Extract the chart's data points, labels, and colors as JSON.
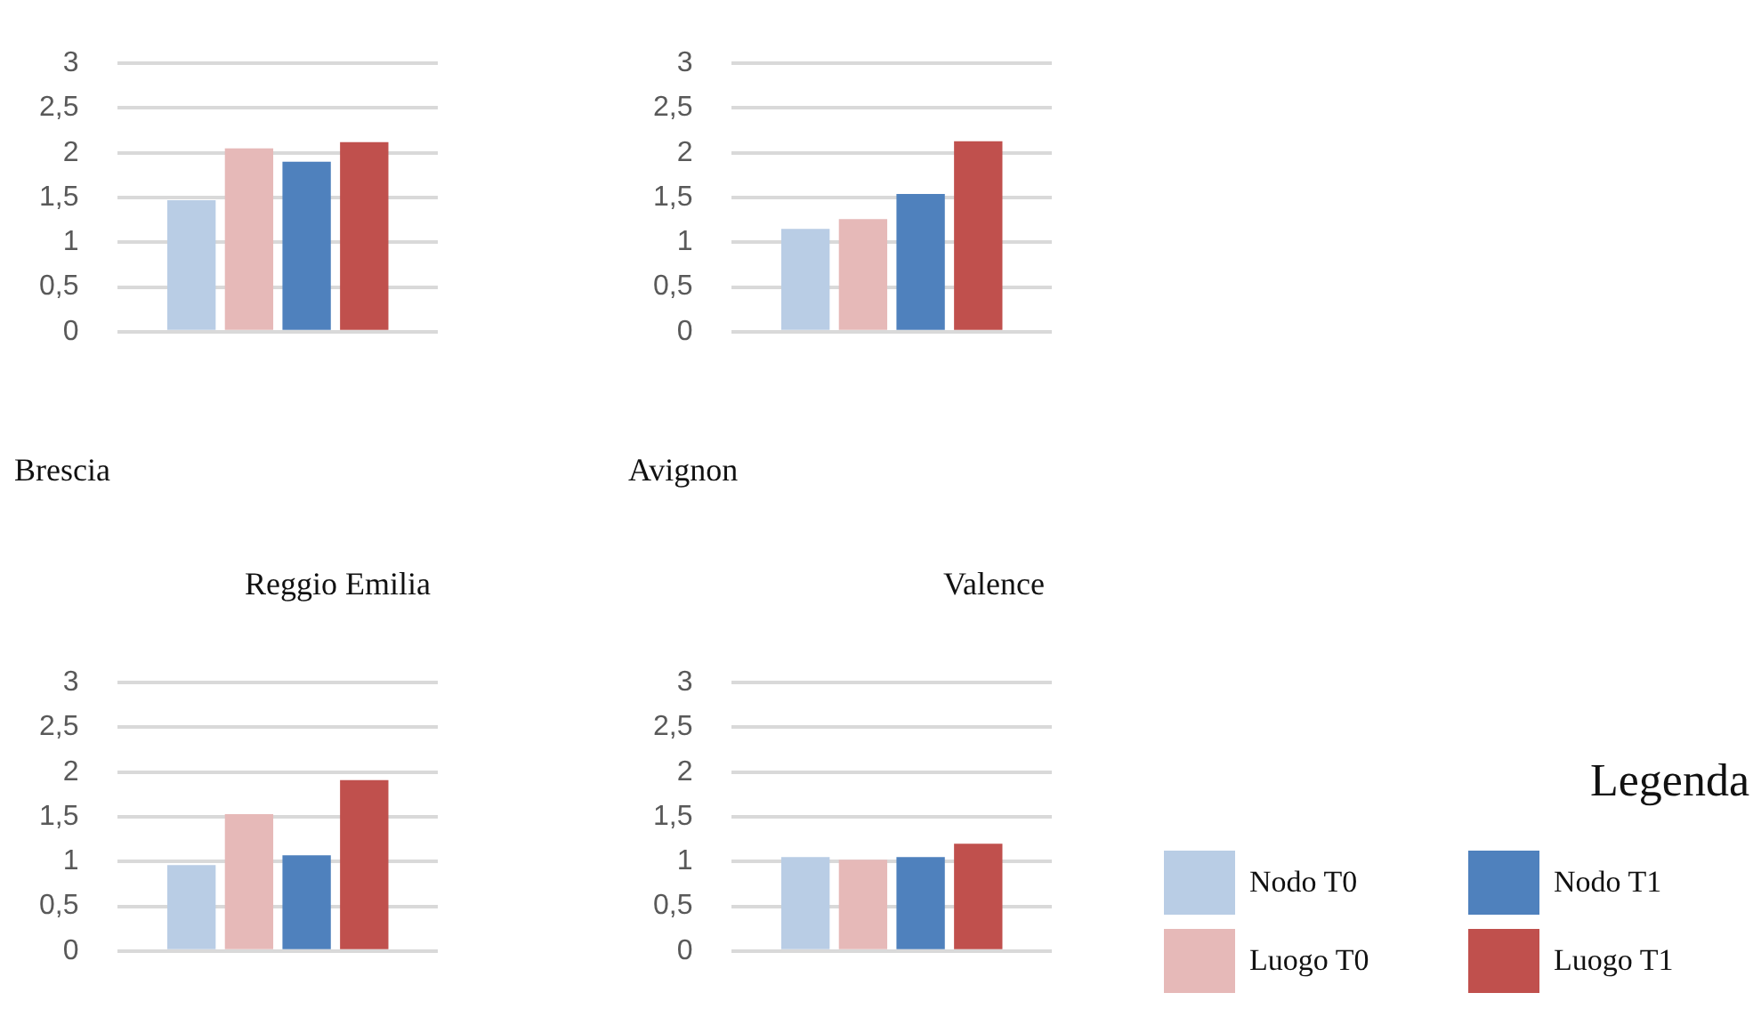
{
  "chart_data": [
    {
      "type": "bar",
      "title": "Brescia",
      "categories": [
        null
      ],
      "ylim": [
        0,
        3
      ],
      "yticks": [
        0,
        {
          "value": 0.5,
          "label": "0,5"
        },
        1,
        {
          "value": 1.5,
          "label": "1,5"
        },
        2,
        {
          "value": 2.5,
          "label": "2,5"
        },
        3
      ],
      "grid": "y",
      "tick_labels": "y",
      "series": [
        {
          "color": "#b9cde5",
          "values": [
            1.47
          ]
        },
        {
          "color": "#e6b9b8",
          "values": [
            2.05
          ]
        },
        {
          "color": "#4f81bd",
          "values": [
            1.9
          ]
        },
        {
          "color": "#c0504d",
          "values": [
            2.12
          ]
        }
      ]
    },
    {
      "type": "bar",
      "title": "Avignon",
      "categories": [
        null
      ],
      "ylim": [
        0,
        3
      ],
      "yticks": [
        0,
        {
          "value": 0.5,
          "label": "0,5"
        },
        1,
        {
          "value": 1.5,
          "label": "1,5"
        },
        2,
        {
          "value": 2.5,
          "label": "2,5"
        },
        3
      ],
      "grid": "y",
      "tick_labels": "y",
      "series": [
        {
          "color": "#b9cde5",
          "values": [
            1.15
          ]
        },
        {
          "color": "#e6b9b8",
          "values": [
            1.26
          ]
        },
        {
          "color": "#4f81bd",
          "values": [
            1.54
          ]
        },
        {
          "color": "#c0504d",
          "values": [
            2.13
          ]
        }
      ]
    },
    {
      "type": "bar",
      "title": "Reggio Emilia",
      "categories": [
        null
      ],
      "ylim": [
        0,
        3
      ],
      "yticks": [
        0,
        {
          "value": 0.5,
          "label": "0,5"
        },
        1,
        {
          "value": 1.5,
          "label": "1,5"
        },
        2,
        {
          "value": 2.5,
          "label": "2,5"
        },
        3
      ],
      "grid": "y",
      "tick_labels": "y",
      "series": [
        {
          "color": "#b9cde5",
          "values": [
            0.96
          ]
        },
        {
          "color": "#e6b9b8",
          "values": [
            1.53
          ]
        },
        {
          "color": "#4f81bd",
          "values": [
            1.07
          ]
        },
        {
          "color": "#c0504d",
          "values": [
            1.91
          ]
        }
      ]
    },
    {
      "type": "bar",
      "title": "Valence",
      "categories": [
        null
      ],
      "ylim": [
        0,
        3
      ],
      "yticks": [
        0,
        {
          "value": 0.5,
          "label": "0,5"
        },
        1,
        {
          "value": 1.5,
          "label": "1,5"
        },
        2,
        {
          "value": 2.5,
          "label": "2,5"
        },
        3
      ],
      "grid": "y",
      "tick_labels": "y",
      "legend": "right",
      "legend_title": "Legenda",
      "series": [
        {
          "name": "Nodo T0",
          "color": "#b9cde5",
          "values": [
            1.05
          ]
        },
        {
          "name": "Luogo T0",
          "color": "#e6b9b8",
          "values": [
            1.02
          ]
        },
        {
          "name": "Nodo T1",
          "color": "#4f81bd",
          "values": [
            1.05
          ]
        },
        {
          "name": "Luogo T1",
          "color": "#c0504d",
          "values": [
            1.2
          ]
        }
      ]
    }
  ]
}
